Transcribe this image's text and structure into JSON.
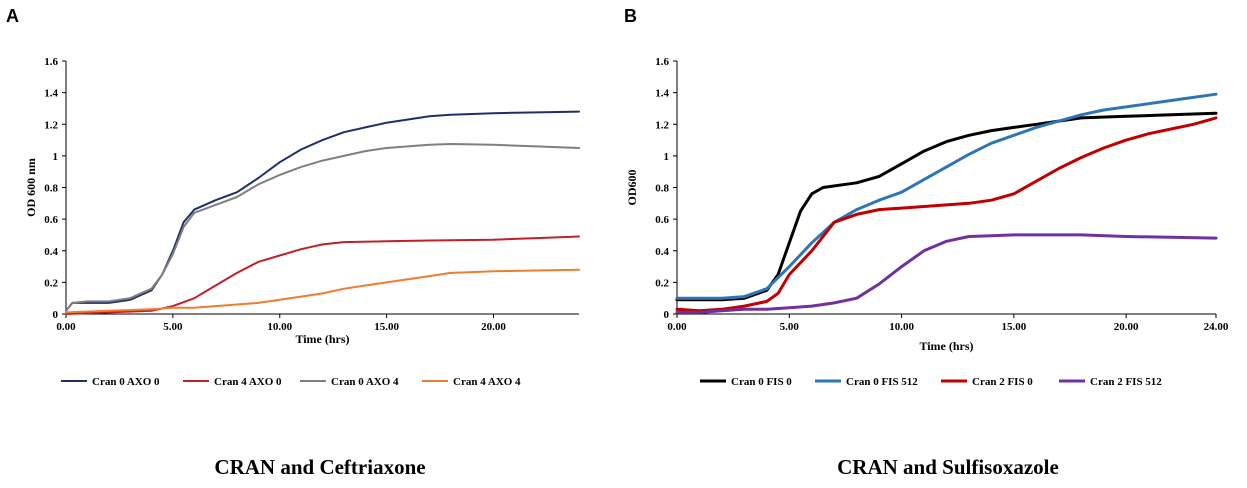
{
  "chart_data": [
    {
      "type": "line",
      "panel": "A",
      "caption": "CRAN and Ceftriaxone",
      "xlabel": "Time (hrs)",
      "ylabel": "OD 600 nm",
      "xlim": [
        0,
        24
      ],
      "ylim": [
        0,
        1.6
      ],
      "xticks": [
        "0.00",
        "5.00",
        "10.00",
        "15.00",
        "20.00"
      ],
      "xtick_values": [
        0,
        5,
        10,
        15,
        20
      ],
      "yticks": [
        "0",
        "0.2",
        "0.4",
        "0.6",
        "0.8",
        "1",
        "1.2",
        "1.4",
        "1.6"
      ],
      "ytick_values": [
        0,
        0.2,
        0.4,
        0.6,
        0.8,
        1,
        1.2,
        1.4,
        1.6
      ],
      "legend_position": "bottom",
      "series": [
        {
          "name": "Cran 0 AXO 0",
          "color": "#1f2f6b",
          "points": [
            [
              0,
              0.02
            ],
            [
              0.3,
              0.07
            ],
            [
              1,
              0.07
            ],
            [
              2,
              0.07
            ],
            [
              3,
              0.09
            ],
            [
              4,
              0.15
            ],
            [
              4.5,
              0.25
            ],
            [
              5,
              0.4
            ],
            [
              5.5,
              0.58
            ],
            [
              6,
              0.66
            ],
            [
              7,
              0.72
            ],
            [
              8,
              0.77
            ],
            [
              9,
              0.86
            ],
            [
              10,
              0.96
            ],
            [
              11,
              1.04
            ],
            [
              12,
              1.1
            ],
            [
              13,
              1.15
            ],
            [
              14,
              1.18
            ],
            [
              15,
              1.21
            ],
            [
              16,
              1.23
            ],
            [
              17,
              1.25
            ],
            [
              18,
              1.26
            ],
            [
              20,
              1.27
            ],
            [
              24,
              1.28
            ]
          ]
        },
        {
          "name": "Cran 4 AXO 0",
          "color": "#c0202a",
          "points": [
            [
              0,
              0
            ],
            [
              2,
              0.01
            ],
            [
              4,
              0.02
            ],
            [
              5,
              0.05
            ],
            [
              6,
              0.1
            ],
            [
              7,
              0.18
            ],
            [
              8,
              0.26
            ],
            [
              9,
              0.33
            ],
            [
              10,
              0.37
            ],
            [
              11,
              0.41
            ],
            [
              12,
              0.44
            ],
            [
              13,
              0.455
            ],
            [
              15,
              0.46
            ],
            [
              17,
              0.465
            ],
            [
              20,
              0.47
            ],
            [
              22,
              0.48
            ],
            [
              24,
              0.49
            ]
          ]
        },
        {
          "name": "Cran 0 AXO 4",
          "color": "#7f7f7f",
          "points": [
            [
              0,
              0.02
            ],
            [
              0.3,
              0.07
            ],
            [
              1,
              0.08
            ],
            [
              2,
              0.08
            ],
            [
              3,
              0.1
            ],
            [
              4,
              0.16
            ],
            [
              4.5,
              0.25
            ],
            [
              5,
              0.38
            ],
            [
              5.5,
              0.55
            ],
            [
              6,
              0.64
            ],
            [
              7,
              0.69
            ],
            [
              8,
              0.74
            ],
            [
              9,
              0.82
            ],
            [
              10,
              0.88
            ],
            [
              11,
              0.93
            ],
            [
              12,
              0.97
            ],
            [
              13,
              1.0
            ],
            [
              14,
              1.03
            ],
            [
              15,
              1.05
            ],
            [
              16,
              1.06
            ],
            [
              17,
              1.07
            ],
            [
              18,
              1.075
            ],
            [
              20,
              1.07
            ],
            [
              22,
              1.06
            ],
            [
              24,
              1.05
            ]
          ]
        },
        {
          "name": "Cran 4 AXO 4",
          "color": "#ed7d31",
          "points": [
            [
              0,
              0.01
            ],
            [
              2,
              0.02
            ],
            [
              4,
              0.03
            ],
            [
              5,
              0.04
            ],
            [
              6,
              0.04
            ],
            [
              7,
              0.05
            ],
            [
              8,
              0.06
            ],
            [
              9,
              0.07
            ],
            [
              10,
              0.09
            ],
            [
              11,
              0.11
            ],
            [
              12,
              0.13
            ],
            [
              13,
              0.16
            ],
            [
              14,
              0.18
            ],
            [
              15,
              0.2
            ],
            [
              16,
              0.22
            ],
            [
              17,
              0.24
            ],
            [
              18,
              0.26
            ],
            [
              19,
              0.265
            ],
            [
              20,
              0.27
            ],
            [
              22,
              0.275
            ],
            [
              24,
              0.28
            ]
          ]
        }
      ]
    },
    {
      "type": "line",
      "panel": "B",
      "caption": "CRAN and Sulfisoxazole",
      "xlabel": "Time (hrs)",
      "ylabel": "OD600",
      "xlim": [
        0,
        24
      ],
      "ylim": [
        0,
        1.6
      ],
      "xticks": [
        "0.00",
        "5.00",
        "10.00",
        "15.00",
        "20.00",
        "24.00"
      ],
      "xtick_values": [
        0,
        5,
        10,
        15,
        20,
        24
      ],
      "yticks": [
        "0",
        "0.2",
        "0.4",
        "0.6",
        "0.8",
        "1",
        "1.2",
        "1.4",
        "1.6"
      ],
      "ytick_values": [
        0,
        0.2,
        0.4,
        0.6,
        0.8,
        1,
        1.2,
        1.4,
        1.6
      ],
      "legend_position": "bottom",
      "series": [
        {
          "name": "Cran 0 FIS 0",
          "color": "#000000",
          "points": [
            [
              0,
              0.09
            ],
            [
              1,
              0.09
            ],
            [
              2,
              0.09
            ],
            [
              3,
              0.1
            ],
            [
              4,
              0.15
            ],
            [
              4.5,
              0.25
            ],
            [
              5,
              0.45
            ],
            [
              5.5,
              0.65
            ],
            [
              6,
              0.76
            ],
            [
              6.5,
              0.8
            ],
            [
              8,
              0.83
            ],
            [
              9,
              0.87
            ],
            [
              10,
              0.95
            ],
            [
              11,
              1.03
            ],
            [
              12,
              1.09
            ],
            [
              13,
              1.13
            ],
            [
              14,
              1.16
            ],
            [
              15,
              1.18
            ],
            [
              16,
              1.2
            ],
            [
              17,
              1.22
            ],
            [
              18,
              1.24
            ],
            [
              20,
              1.25
            ],
            [
              22,
              1.26
            ],
            [
              24,
              1.27
            ]
          ]
        },
        {
          "name": "Cran 0 FIS 512",
          "color": "#2e75b6",
          "points": [
            [
              0,
              0.1
            ],
            [
              1,
              0.1
            ],
            [
              2,
              0.1
            ],
            [
              3,
              0.11
            ],
            [
              4,
              0.16
            ],
            [
              5,
              0.3
            ],
            [
              6,
              0.45
            ],
            [
              7,
              0.58
            ],
            [
              8,
              0.66
            ],
            [
              9,
              0.72
            ],
            [
              10,
              0.77
            ],
            [
              11,
              0.85
            ],
            [
              12,
              0.93
            ],
            [
              13,
              1.01
            ],
            [
              14,
              1.08
            ],
            [
              15,
              1.13
            ],
            [
              16,
              1.18
            ],
            [
              17,
              1.22
            ],
            [
              18,
              1.26
            ],
            [
              19,
              1.29
            ],
            [
              20,
              1.31
            ],
            [
              22,
              1.35
            ],
            [
              24,
              1.39
            ]
          ]
        },
        {
          "name": "Cran 2 FIS 0",
          "color": "#c00000",
          "points": [
            [
              0,
              0.03
            ],
            [
              1,
              0.02
            ],
            [
              2,
              0.03
            ],
            [
              3,
              0.05
            ],
            [
              4,
              0.08
            ],
            [
              4.5,
              0.13
            ],
            [
              5,
              0.25
            ],
            [
              6,
              0.4
            ],
            [
              7,
              0.58
            ],
            [
              8,
              0.63
            ],
            [
              9,
              0.66
            ],
            [
              10,
              0.67
            ],
            [
              11,
              0.68
            ],
            [
              12,
              0.69
            ],
            [
              13,
              0.7
            ],
            [
              14,
              0.72
            ],
            [
              15,
              0.76
            ],
            [
              16,
              0.84
            ],
            [
              17,
              0.92
            ],
            [
              18,
              0.99
            ],
            [
              19,
              1.05
            ],
            [
              20,
              1.1
            ],
            [
              21,
              1.14
            ],
            [
              22,
              1.17
            ],
            [
              23,
              1.2
            ],
            [
              24,
              1.24
            ]
          ]
        },
        {
          "name": "Cran 2 FIS 512",
          "color": "#7030a0",
          "points": [
            [
              0,
              0.01
            ],
            [
              1,
              0.01
            ],
            [
              2,
              0.02
            ],
            [
              3,
              0.03
            ],
            [
              4,
              0.03
            ],
            [
              5,
              0.04
            ],
            [
              6,
              0.05
            ],
            [
              7,
              0.07
            ],
            [
              8,
              0.1
            ],
            [
              9,
              0.19
            ],
            [
              10,
              0.3
            ],
            [
              11,
              0.4
            ],
            [
              12,
              0.46
            ],
            [
              13,
              0.49
            ],
            [
              14,
              0.495
            ],
            [
              15,
              0.5
            ],
            [
              16,
              0.5
            ],
            [
              17,
              0.5
            ],
            [
              18,
              0.5
            ],
            [
              20,
              0.49
            ],
            [
              22,
              0.485
            ],
            [
              24,
              0.48
            ]
          ]
        }
      ]
    }
  ]
}
